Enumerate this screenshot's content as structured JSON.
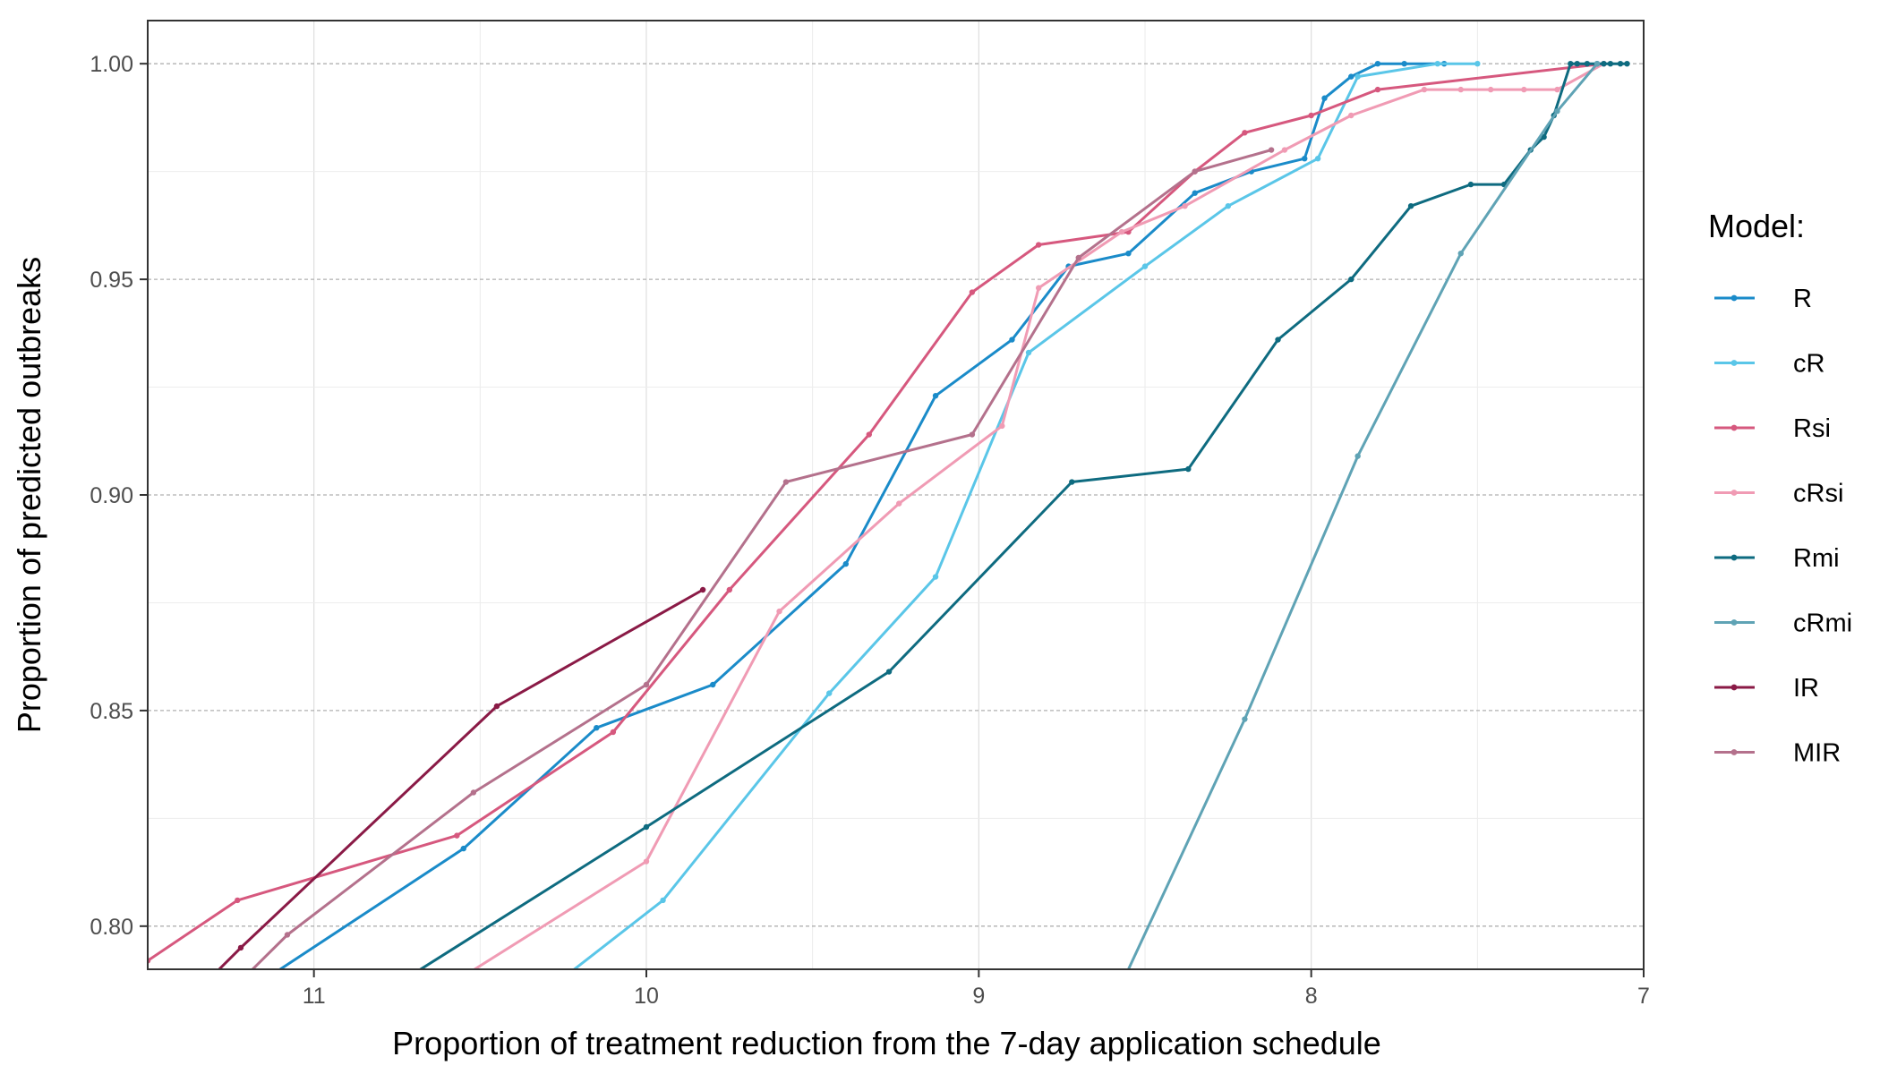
{
  "chart_data": {
    "type": "line",
    "title": "",
    "xlabel": "Proportion of treatment reduction from the 7-day application schedule",
    "ylabel": "Proportion of predicted outbreaks",
    "x_reversed": true,
    "xlim": [
      7,
      11.5
    ],
    "ylim": [
      0.79,
      1.01
    ],
    "x_ticks": [
      11,
      10,
      9,
      8,
      7
    ],
    "y_ticks": [
      0.8,
      0.85,
      0.9,
      0.95,
      1.0
    ],
    "y_tick_labels": [
      "0.80",
      "0.85",
      "0.90",
      "0.95",
      "1.00"
    ],
    "grid": true,
    "legend": {
      "title": "Model:",
      "position": "right"
    },
    "series": [
      {
        "name": "R",
        "color": "#1a8bc9",
        "x": [
          11.2,
          10.55,
          10.15,
          9.8,
          9.4,
          9.13,
          8.9,
          8.73,
          8.55,
          8.35,
          8.18,
          8.02,
          7.96,
          7.88,
          7.8,
          7.72,
          7.6
        ],
        "y": [
          0.785,
          0.818,
          0.846,
          0.856,
          0.884,
          0.923,
          0.936,
          0.953,
          0.956,
          0.97,
          0.975,
          0.978,
          0.992,
          0.997,
          1.0,
          1.0,
          1.0
        ]
      },
      {
        "name": "cR",
        "color": "#5ac6e8",
        "x": [
          10.3,
          9.95,
          9.45,
          9.13,
          8.85,
          8.5,
          8.25,
          7.98,
          7.86,
          7.62,
          7.5
        ],
        "y": [
          0.785,
          0.806,
          0.854,
          0.881,
          0.933,
          0.953,
          0.967,
          0.978,
          0.997,
          1.0,
          1.0
        ]
      },
      {
        "name": "Rsi",
        "color": "#d6587e",
        "x": [
          11.5,
          11.23,
          10.57,
          10.1,
          9.75,
          9.33,
          9.02,
          8.82,
          8.55,
          8.35,
          8.2,
          8.0,
          7.8,
          7.12
        ],
        "y": [
          0.792,
          0.806,
          0.821,
          0.845,
          0.878,
          0.914,
          0.947,
          0.958,
          0.961,
          0.975,
          0.984,
          0.988,
          0.994,
          1.0
        ]
      },
      {
        "name": "cRsi",
        "color": "#f09bb4",
        "x": [
          10.62,
          10.0,
          9.6,
          9.24,
          8.93,
          8.82,
          8.57,
          8.38,
          8.08,
          7.88,
          7.66,
          7.55,
          7.46,
          7.36,
          7.26,
          7.12
        ],
        "y": [
          0.785,
          0.815,
          0.873,
          0.898,
          0.916,
          0.948,
          0.961,
          0.967,
          0.98,
          0.988,
          0.994,
          0.994,
          0.994,
          0.994,
          0.994,
          1.0
        ]
      },
      {
        "name": "Rmi",
        "color": "#0e6b80",
        "x": [
          10.72,
          10.0,
          9.27,
          8.72,
          8.37,
          8.1,
          7.88,
          7.7,
          7.52,
          7.42,
          7.34,
          7.3,
          7.27,
          7.22,
          7.2,
          7.17,
          7.14,
          7.12,
          7.1,
          7.07,
          7.05
        ],
        "y": [
          0.788,
          0.823,
          0.859,
          0.903,
          0.906,
          0.936,
          0.95,
          0.967,
          0.972,
          0.972,
          0.98,
          0.983,
          0.988,
          1.0,
          1.0,
          1.0,
          1.0,
          1.0,
          1.0,
          1.0,
          1.0
        ]
      },
      {
        "name": "cRmi",
        "color": "#5fa3b5",
        "x": [
          8.58,
          8.2,
          7.86,
          7.55,
          7.26,
          7.14
        ],
        "y": [
          0.785,
          0.848,
          0.909,
          0.956,
          0.989,
          1.0
        ]
      },
      {
        "name": "IR",
        "color": "#8a1a46",
        "x": [
          11.35,
          11.22,
          10.45,
          9.83
        ],
        "y": [
          0.785,
          0.795,
          0.851,
          0.878
        ]
      },
      {
        "name": "MIR",
        "color": "#b4718c",
        "x": [
          11.25,
          11.08,
          10.52,
          10.0,
          9.58,
          9.02,
          8.7,
          8.35,
          8.12
        ],
        "y": [
          0.785,
          0.798,
          0.831,
          0.856,
          0.903,
          0.914,
          0.955,
          0.975,
          0.98
        ]
      }
    ]
  }
}
